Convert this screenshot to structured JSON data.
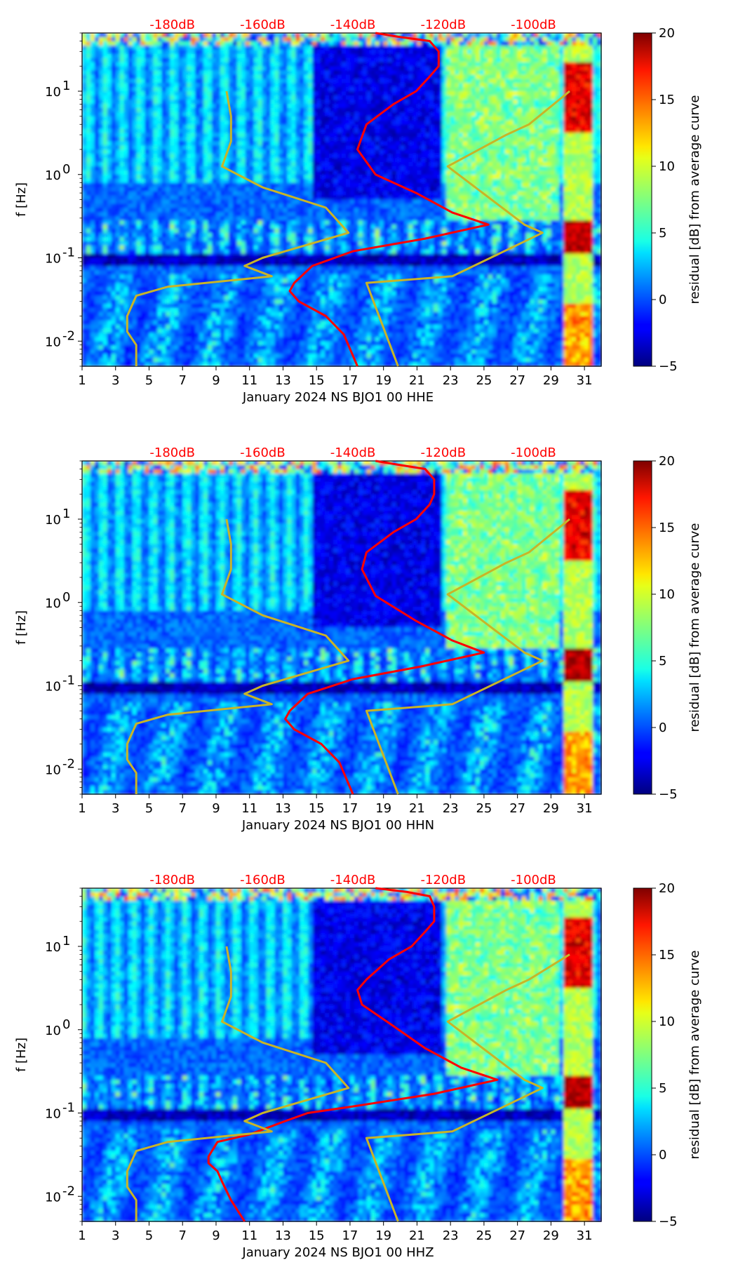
{
  "colormap": "jet",
  "colors": {
    "average_curve": "#ff0000",
    "noise_models": "#c8b428",
    "top_labels": "#ff0000"
  },
  "panels": [
    {
      "xlabel": "January 2024 NS BJO1 00 HHE",
      "ylabel": "f [Hz]",
      "colorbar_label": "residual [dB] from average curve",
      "channel": "HHE"
    },
    {
      "xlabel": "January 2024 NS BJO1 00 HHN",
      "ylabel": "f [Hz]",
      "colorbar_label": "residual [dB] from average curve",
      "channel": "HHN"
    },
    {
      "xlabel": "January 2024 NS BJO1 00 HHZ",
      "ylabel": "f [Hz]",
      "colorbar_label": "residual [dB] from average curve",
      "channel": "HHZ"
    }
  ],
  "chart_data": [
    {
      "type": "heatmap",
      "xlabel": "January 2024 NS BJO1 00 HHE",
      "ylabel": "f [Hz]",
      "x_ticks": [
        "1",
        "3",
        "5",
        "7",
        "9",
        "11",
        "13",
        "15",
        "17",
        "19",
        "21",
        "23",
        "25",
        "27",
        "29",
        "31"
      ],
      "y_scale": "log",
      "y_ticks": [
        "10^1",
        "10^0",
        "10^-1",
        "10^-2"
      ],
      "ylim": [
        0.005,
        50
      ],
      "xlim": [
        1,
        32
      ],
      "top_axis_ticks": [
        "-180dB",
        "-160dB",
        "-140dB",
        "-120dB",
        "-100dB"
      ],
      "colorbar": {
        "label": "residual [dB] from average curve",
        "ticks": [
          "20",
          "15",
          "10",
          "5",
          "0",
          "−5"
        ],
        "range": [
          -5,
          20
        ],
        "colormap": "jet"
      },
      "lines": [
        {
          "role": "average curve",
          "color": "#ff0000",
          "points": [
            [
              -135,
              50
            ],
            [
              -130,
              45
            ],
            [
              -123,
              40
            ],
            [
              -121,
              30
            ],
            [
              -121,
              20
            ],
            [
              -123,
              15
            ],
            [
              -126,
              10
            ],
            [
              -131,
              7
            ],
            [
              -137,
              4
            ],
            [
              -139,
              2
            ],
            [
              -135,
              1
            ],
            [
              -126,
              0.6
            ],
            [
              -118,
              0.35
            ],
            [
              -110,
              0.25
            ],
            [
              -124,
              0.17
            ],
            [
              -140,
              0.12
            ],
            [
              -149,
              0.08
            ],
            [
              -153,
              0.05
            ],
            [
              -154,
              0.04
            ],
            [
              -152,
              0.03
            ],
            [
              -146,
              0.02
            ],
            [
              -142,
              0.012
            ],
            [
              -139,
              0.005
            ]
          ]
        },
        {
          "role": "noise model high",
          "color": "#c8b428",
          "points": [
            [
              -92,
              10
            ],
            [
              -101,
              4
            ],
            [
              -106,
              3
            ],
            [
              -119,
              1.25
            ],
            [
              -102,
              0.25
            ],
            [
              -98,
              0.2
            ],
            [
              -118,
              0.06
            ],
            [
              -137,
              0.05
            ],
            [
              -130,
              0.005
            ]
          ]
        },
        {
          "role": "noise model low",
          "color": "#c8b428",
          "points": [
            [
              -168,
              10
            ],
            [
              -167,
              5
            ],
            [
              -167,
              2.5
            ],
            [
              -169,
              1.25
            ],
            [
              -160,
              0.7
            ],
            [
              -146,
              0.4
            ],
            [
              -141,
              0.2
            ],
            [
              -160,
              0.1
            ],
            [
              -164,
              0.08
            ],
            [
              -158,
              0.06
            ],
            [
              -181,
              0.045
            ],
            [
              -188,
              0.035
            ],
            [
              -190,
              0.02
            ],
            [
              -190,
              0.013
            ],
            [
              -188,
              0.009
            ],
            [
              -188,
              0.005
            ]
          ]
        }
      ]
    },
    {
      "type": "heatmap",
      "xlabel": "January 2024 NS BJO1 00 HHN",
      "ylabel": "f [Hz]",
      "x_ticks": [
        "1",
        "3",
        "5",
        "7",
        "9",
        "11",
        "13",
        "15",
        "17",
        "19",
        "21",
        "23",
        "25",
        "27",
        "29",
        "31"
      ],
      "y_scale": "log",
      "y_ticks": [
        "10^1",
        "10^0",
        "10^-1",
        "10^-2"
      ],
      "ylim": [
        0.005,
        50
      ],
      "xlim": [
        1,
        32
      ],
      "top_axis_ticks": [
        "-180dB",
        "-160dB",
        "-140dB",
        "-120dB",
        "-100dB"
      ],
      "colorbar": {
        "label": "residual [dB] from average curve",
        "ticks": [
          "20",
          "15",
          "10",
          "5",
          "0",
          "−5"
        ],
        "range": [
          -5,
          20
        ],
        "colormap": "jet"
      },
      "lines": [
        {
          "role": "average curve",
          "color": "#ff0000",
          "points": [
            [
              -135,
              50
            ],
            [
              -130,
              45
            ],
            [
              -124,
              40
            ],
            [
              -122,
              30
            ],
            [
              -122,
              20
            ],
            [
              -123,
              15
            ],
            [
              -126,
              10
            ],
            [
              -131,
              7
            ],
            [
              -137,
              4
            ],
            [
              -138,
              2.5
            ],
            [
              -135,
              1.2
            ],
            [
              -126,
              0.6
            ],
            [
              -118,
              0.35
            ],
            [
              -111,
              0.25
            ],
            [
              -125,
              0.17
            ],
            [
              -140,
              0.12
            ],
            [
              -150,
              0.08
            ],
            [
              -154,
              0.05
            ],
            [
              -155,
              0.04
            ],
            [
              -153,
              0.03
            ],
            [
              -147,
              0.02
            ],
            [
              -143,
              0.012
            ],
            [
              -140,
              0.005
            ]
          ]
        },
        {
          "role": "noise model high",
          "color": "#c8b428",
          "points": [
            [
              -92,
              10
            ],
            [
              -101,
              4
            ],
            [
              -106,
              3
            ],
            [
              -119,
              1.25
            ],
            [
              -102,
              0.25
            ],
            [
              -98,
              0.2
            ],
            [
              -118,
              0.06
            ],
            [
              -137,
              0.05
            ],
            [
              -130,
              0.005
            ]
          ]
        },
        {
          "role": "noise model low",
          "color": "#c8b428",
          "points": [
            [
              -168,
              10
            ],
            [
              -167,
              5
            ],
            [
              -167,
              2.5
            ],
            [
              -169,
              1.25
            ],
            [
              -160,
              0.7
            ],
            [
              -146,
              0.4
            ],
            [
              -141,
              0.2
            ],
            [
              -160,
              0.1
            ],
            [
              -164,
              0.08
            ],
            [
              -158,
              0.06
            ],
            [
              -181,
              0.045
            ],
            [
              -188,
              0.035
            ],
            [
              -190,
              0.02
            ],
            [
              -190,
              0.013
            ],
            [
              -188,
              0.009
            ],
            [
              -188,
              0.005
            ]
          ]
        }
      ]
    },
    {
      "type": "heatmap",
      "xlabel": "January 2024 NS BJO1 00 HHZ",
      "ylabel": "f [Hz]",
      "x_ticks": [
        "1",
        "3",
        "5",
        "7",
        "9",
        "11",
        "13",
        "15",
        "17",
        "19",
        "21",
        "23",
        "25",
        "27",
        "29",
        "31"
      ],
      "y_scale": "log",
      "y_ticks": [
        "10^1",
        "10^0",
        "10^-1",
        "10^-2"
      ],
      "ylim": [
        0.005,
        50
      ],
      "xlim": [
        1,
        32
      ],
      "top_axis_ticks": [
        "-180dB",
        "-160dB",
        "-140dB",
        "-120dB",
        "-100dB"
      ],
      "colorbar": {
        "label": "residual [dB] from average curve",
        "ticks": [
          "20",
          "15",
          "10",
          "5",
          "0",
          "−5"
        ],
        "range": [
          -5,
          20
        ],
        "colormap": "jet"
      },
      "lines": [
        {
          "role": "average curve",
          "color": "#ff0000",
          "points": [
            [
              -135,
              50
            ],
            [
              -128,
              45
            ],
            [
              -123,
              40
            ],
            [
              -122,
              30
            ],
            [
              -122,
              20
            ],
            [
              -124,
              15
            ],
            [
              -127,
              10
            ],
            [
              -132,
              7
            ],
            [
              -137,
              4
            ],
            [
              -139,
              3
            ],
            [
              -138,
              2
            ],
            [
              -132,
              1.2
            ],
            [
              -124,
              0.6
            ],
            [
              -116,
              0.35
            ],
            [
              -108,
              0.25
            ],
            [
              -122,
              0.17
            ],
            [
              -140,
              0.12
            ],
            [
              -150,
              0.1
            ],
            [
              -155,
              0.08
            ],
            [
              -163,
              0.055
            ],
            [
              -170,
              0.045
            ],
            [
              -172,
              0.03
            ],
            [
              -172,
              0.025
            ],
            [
              -170,
              0.02
            ],
            [
              -169,
              0.015
            ],
            [
              -167,
              0.009
            ],
            [
              -164,
              0.005
            ]
          ]
        },
        {
          "role": "noise model high",
          "color": "#c8b428",
          "points": [
            [
              -92,
              8
            ],
            [
              -101,
              4
            ],
            [
              -106,
              3
            ],
            [
              -119,
              1.25
            ],
            [
              -102,
              0.25
            ],
            [
              -98,
              0.2
            ],
            [
              -118,
              0.06
            ],
            [
              -137,
              0.05
            ],
            [
              -130,
              0.005
            ]
          ]
        },
        {
          "role": "noise model low",
          "color": "#c8b428",
          "points": [
            [
              -168,
              10
            ],
            [
              -167,
              5
            ],
            [
              -167,
              2.5
            ],
            [
              -169,
              1.25
            ],
            [
              -160,
              0.7
            ],
            [
              -146,
              0.4
            ],
            [
              -141,
              0.2
            ],
            [
              -160,
              0.1
            ],
            [
              -164,
              0.08
            ],
            [
              -158,
              0.06
            ],
            [
              -181,
              0.045
            ],
            [
              -188,
              0.035
            ],
            [
              -190,
              0.02
            ],
            [
              -190,
              0.013
            ],
            [
              -188,
              0.009
            ],
            [
              -188,
              0.005
            ]
          ]
        }
      ]
    }
  ]
}
